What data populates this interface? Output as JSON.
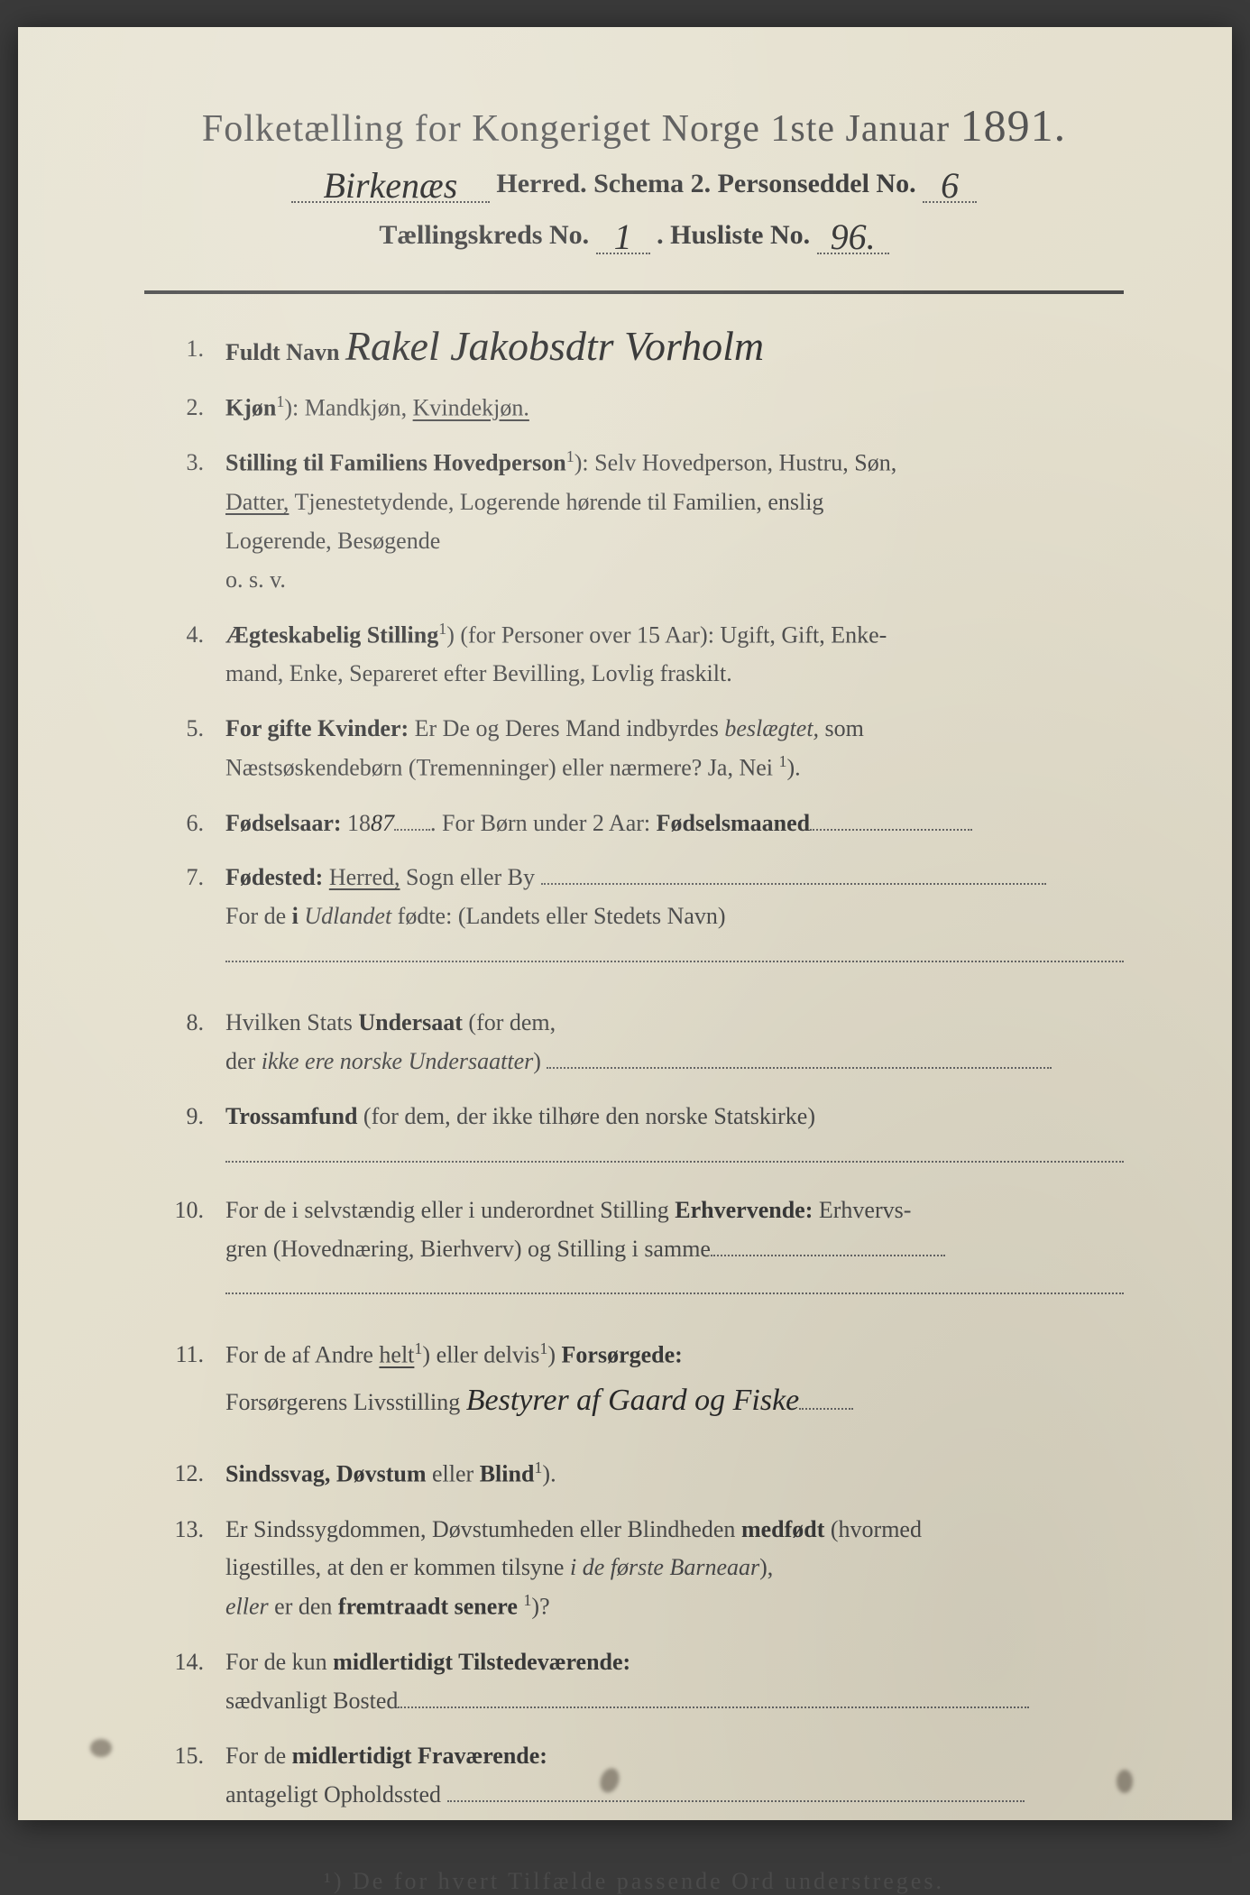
{
  "header": {
    "title_pre": "Folketælling for Kongeriget Norge 1ste Januar ",
    "title_year": "1891.",
    "line1_hw": "Birkenæs",
    "line1_txt1": " Herred.   Schema 2.   Personseddel No.",
    "line1_hw2": "6",
    "line2_txt1": "Tællingskreds No.",
    "line2_hw1": "1",
    "line2_txt2": ".    Husliste No.",
    "line2_hw2": "96."
  },
  "items": [
    {
      "n": "1.",
      "label": "Fuldt Navn",
      "rest_hw": "Rakel Jakobsdtr Vorholm"
    },
    {
      "n": "2.",
      "label": "Kjøn",
      "sup": "1",
      "rest": "):  Mandkjøn,  ",
      "u": "Kvindekjøn."
    },
    {
      "n": "3.",
      "label": "Stilling til Familiens Hovedperson",
      "sup": "1",
      "rest": "):   Selv  Hovedperson,  Hustru,  Søn,",
      "cont": [
        "<span class='u'>Datter,</span>  Tjenestetydende,   Logerende   hørende  til  Familien,  enslig",
        "Logerende,  Besøgende",
        "o. s. v."
      ]
    },
    {
      "n": "4.",
      "label": "Ægteskabelig Stilling",
      "sup": "1",
      "rest": ") (for Personer over 15 Aar):  Ugift,  Gift,  Enke-",
      "cont": [
        "mand,  Enke,  Separeret efter Bevilling,  Lovlig fraskilt."
      ]
    },
    {
      "n": "5.",
      "label": "For  gifte  Kvinder:",
      "rest": "  Er  De  og  Deres  Mand  indbyrdes  <span class='i'>beslægtet,</span>  som",
      "cont": [
        "Næstsøskendebørn (Tremenninger) eller nærmere?   Ja, Nei <span class='sup'>1</span>)."
      ]
    },
    {
      "n": "6.",
      "label": "Fødselsaar:",
      "rest": "  18<span class='hw'>87</span><span class='dotline' style='width:40px'></span>.    For Børn under 2 Aar:  <span class='b'>Fødselsmaaned</span><span class='dotline' style='width:180px'></span>"
    },
    {
      "n": "7.",
      "label": "Fødested:",
      "rest": "  <span class='u'>Herred,</span>  Sogn  eller  By <span class='dotline' style='width:560px'></span>",
      "cont": [
        "For de <span class='b'>i</span>  <span class='i'>Udlandet</span> fødte:  (Landets eller Stedets Navn)",
        "<span class='dotline' style='width:100%'></span>"
      ]
    },
    {
      "n": "8.",
      "label": "",
      "rest": "Hvilken Stats <span class='b'>Undersaat</span>  (for dem,",
      "cont": [
        "der <span class='i'>ikke ere norske Undersaatter</span>) <span class='dotline' style='width:560px'></span>"
      ]
    },
    {
      "n": "9.",
      "label": "Trossamfund",
      "rest": "   (for  dem,  der  ikke  tilhøre   den   norske   Statskirke)",
      "cont": [
        "<span class='dotline' style='width:100%'></span>"
      ]
    },
    {
      "n": "10.",
      "label": "",
      "rest": "For de i selvstændig eller i underordnet Stilling <span class='b'>Erhvervende:</span>  Erhvervs-",
      "cont": [
        "gren  (Hovednæring,  Bierhverv)  og  Stilling  i  samme<span class='dotline' style='width:260px'></span>",
        "<span class='dotline' style='width:100%'></span>"
      ]
    },
    {
      "n": "11.",
      "label": "",
      "rest": "For de af Andre <span class='u'>helt</span><span class='sup'>1</span>)  eller delvis<span class='sup'>1</span>)  <span class='b'>Forsørgede:</span>",
      "cont": [
        "Forsørgerens Livsstilling <span class='hw' style='font-size:34px'>Bestyrer af Gaard og Fiske</span><span class='dotline' style='width:60px'></span>"
      ]
    },
    {
      "n": "12.",
      "label": "Sindssvag, Døvstum",
      "rest": " eller <span class='b'>Blind</span><span class='sup'>1</span>)."
    },
    {
      "n": "13.",
      "label": "",
      "rest": "Er Sindssygdommen, Døvstumheden eller Blindheden <span class='b'>medfødt</span> (hvormed",
      "cont": [
        "ligestilles, at den er kommen tilsyne <span class='i'>i de første Barneaar</span>),",
        "<span class='i'>eller</span>  er den <span class='b'>fremtraadt  senere</span> <span class='sup'>1</span>)?"
      ]
    },
    {
      "n": "14.",
      "label": "",
      "rest": "For de kun <span class='b'>midlertidigt Tilstedeværende:</span>",
      "cont": [
        "sædvanligt Bosted<span class='dotline' style='width:700px'></span>"
      ]
    },
    {
      "n": "15.",
      "label": "",
      "rest": "For de <span class='b'>midlertidigt Fraværende:</span>",
      "cont": [
        "antageligt Opholdssted <span class='dotline' style='width:640px'></span>"
      ]
    }
  ],
  "footnote": "¹) De for hvert Tilfælde passende Ord understreges."
}
